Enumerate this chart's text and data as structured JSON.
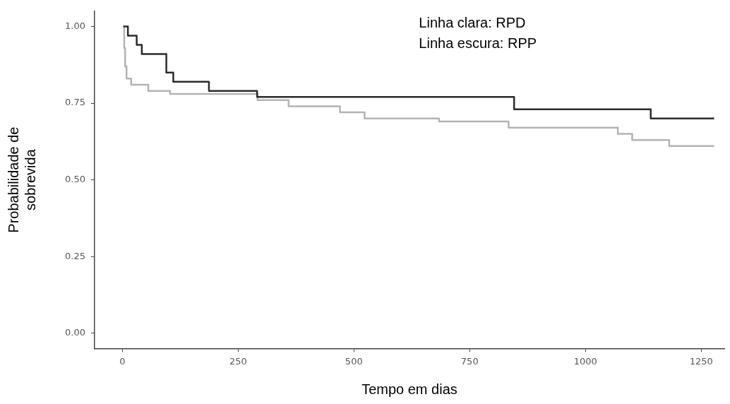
{
  "chart_data": {
    "type": "step",
    "xlabel": "Tempo em dias",
    "ylabel": "Probabilidade de sobrevida",
    "annotations": [
      "Linha clara: RPD",
      "Linha escura: RPP"
    ],
    "series": [
      {
        "color": "#2b2b2b",
        "x": [
          2,
          12,
          31,
          42,
          95,
          110,
          187,
          291,
          846,
          1141,
          1278
        ],
        "values": [
          1.0,
          0.97,
          0.94,
          0.91,
          0.85,
          0.82,
          0.79,
          0.77,
          0.73,
          0.7,
          0.7
        ]
      },
      {
        "color": "#b3b3b3",
        "x": [
          2,
          4,
          6,
          9,
          19,
          56,
          103,
          292,
          359,
          470,
          523,
          684,
          834,
          1070,
          1101,
          1181,
          1278
        ],
        "values": [
          1.0,
          0.93,
          0.87,
          0.83,
          0.81,
          0.79,
          0.78,
          0.76,
          0.74,
          0.72,
          0.7,
          0.69,
          0.67,
          0.65,
          0.63,
          0.61,
          0.61
        ]
      }
    ],
    "xlim": [
      -60,
      1300
    ],
    "xticks": [
      0,
      250,
      500,
      750,
      1000,
      1250
    ],
    "ylim": [
      -0.05,
      1.05
    ],
    "yticks": [
      {
        "value": 0,
        "label": "0.00"
      },
      {
        "value": 0.25,
        "label": "0.25"
      },
      {
        "value": 0.5,
        "label": "0.50"
      },
      {
        "value": 0.75,
        "label": "0.75"
      },
      {
        "value": 1,
        "label": "1.00"
      }
    ],
    "grid": false,
    "legend": false,
    "marker": "none",
    "line_style": "solid"
  }
}
